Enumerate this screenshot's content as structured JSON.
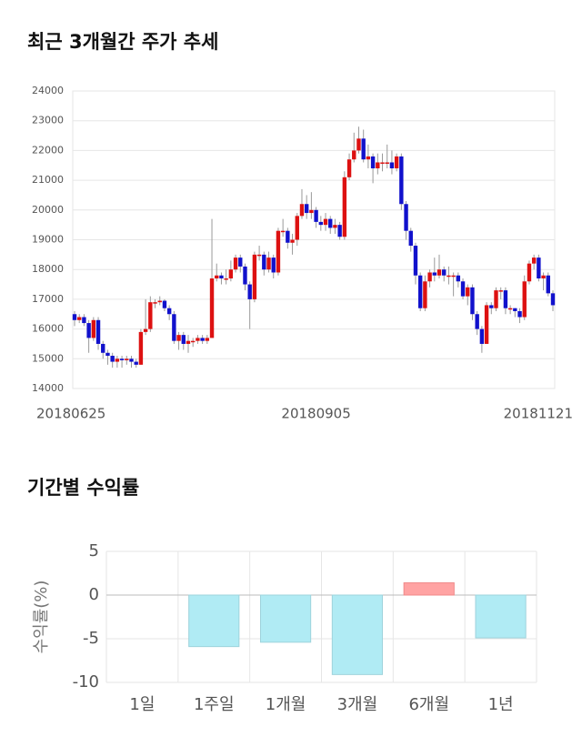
{
  "chart_data": [
    {
      "type": "candlestick",
      "title": "최근 3개월간 주가 추세",
      "up_color": "#dd1111",
      "down_color": "#1111cc",
      "ylim": [
        14000,
        24000
      ],
      "yticks": [
        14000,
        15000,
        16000,
        17000,
        18000,
        19000,
        20000,
        21000,
        22000,
        23000,
        24000
      ],
      "grid": true,
      "categories": [
        "20180625",
        null,
        null,
        null,
        null,
        null,
        null,
        null,
        null,
        null,
        null,
        null,
        null,
        null,
        null,
        null,
        null,
        null,
        null,
        null,
        null,
        null,
        null,
        null,
        null,
        null,
        null,
        null,
        null,
        null,
        null,
        null,
        null,
        null,
        null,
        null,
        null,
        null,
        null,
        null,
        null,
        null,
        null,
        null,
        null,
        null,
        null,
        null,
        null,
        null,
        null,
        "20180905",
        null,
        null,
        null,
        null,
        null,
        null,
        null,
        null,
        null,
        null,
        null,
        null,
        null,
        null,
        null,
        null,
        null,
        null,
        null,
        null,
        null,
        null,
        null,
        null,
        null,
        null,
        null,
        null,
        null,
        null,
        null,
        null,
        null,
        null,
        null,
        null,
        null,
        null,
        null,
        null,
        null,
        null,
        null,
        null,
        null,
        null,
        null,
        null,
        null,
        "20181121"
      ],
      "open": [
        16500,
        16300,
        16400,
        16200,
        15700,
        16300,
        15500,
        15200,
        15100,
        14900,
        15000,
        14950,
        15000,
        14900,
        14800,
        15900,
        16000,
        16900,
        16900,
        16950,
        16700,
        16500,
        15600,
        15800,
        15500,
        15600,
        15600,
        15700,
        15600,
        15700,
        17700,
        17800,
        17700,
        17700,
        18000,
        18400,
        18100,
        17500,
        17000,
        18500,
        18500,
        18000,
        18400,
        17900,
        19300,
        19300,
        18900,
        19000,
        19800,
        20200,
        19900,
        20000,
        19600,
        19500,
        19700,
        19400,
        19500,
        19100,
        21100,
        21700,
        22000,
        22400,
        21700,
        21800,
        21400,
        21600,
        21600,
        21600,
        21400,
        21800,
        20200,
        19300,
        18800,
        17800,
        16700,
        17600,
        17900,
        17800,
        18000,
        17800,
        17800,
        17800,
        17600,
        17100,
        17400,
        16500,
        16000,
        15500,
        16800,
        16700,
        17300,
        17300,
        16700,
        16700,
        16600,
        16400,
        17600,
        18200,
        18400,
        17700,
        17800,
        17200
      ],
      "high": [
        16600,
        16500,
        16500,
        16300,
        16400,
        16400,
        15600,
        15300,
        15200,
        15100,
        15100,
        15100,
        15100,
        15000,
        16000,
        17000,
        17100,
        17000,
        17100,
        17000,
        16800,
        16600,
        15900,
        15900,
        15800,
        15700,
        15800,
        15800,
        15800,
        19700,
        18200,
        17900,
        18000,
        18300,
        18500,
        18500,
        18200,
        17600,
        18600,
        18800,
        18600,
        18600,
        18500,
        19400,
        19700,
        19400,
        19200,
        19900,
        20700,
        20500,
        20600,
        20100,
        19800,
        19900,
        19800,
        19700,
        19600,
        21300,
        21900,
        22600,
        22800,
        22700,
        22200,
        21900,
        21900,
        21900,
        22200,
        22000,
        21900,
        21900,
        20300,
        19400,
        18900,
        17900,
        17800,
        18000,
        18400,
        18500,
        18100,
        18100,
        17900,
        17900,
        17700,
        17500,
        17500,
        16600,
        16100,
        16900,
        16900,
        17400,
        17400,
        17400,
        16800,
        16700,
        16700,
        17800,
        18300,
        18500,
        18500,
        17900,
        17900,
        17300
      ],
      "low": [
        16100,
        16200,
        16100,
        15200,
        15600,
        15300,
        15000,
        14800,
        14700,
        14700,
        14700,
        14800,
        14700,
        14700,
        14800,
        15800,
        15900,
        16700,
        16800,
        16600,
        16300,
        15500,
        15300,
        15300,
        15200,
        15400,
        15500,
        15500,
        15500,
        15700,
        17600,
        17500,
        17500,
        17600,
        17900,
        17900,
        17300,
        16000,
        16900,
        18300,
        17800,
        17900,
        17700,
        17800,
        19100,
        18700,
        18500,
        18800,
        19700,
        19700,
        19700,
        19400,
        19300,
        19300,
        19200,
        19200,
        19000,
        19000,
        21000,
        21600,
        21900,
        21600,
        21400,
        20900,
        21200,
        21300,
        21400,
        21200,
        21300,
        20000,
        19000,
        18600,
        17500,
        16600,
        16600,
        17400,
        17600,
        17700,
        17600,
        17500,
        17100,
        17400,
        17000,
        16800,
        16300,
        15800,
        15200,
        15500,
        16500,
        16600,
        17000,
        16500,
        16500,
        16400,
        16200,
        16300,
        17500,
        18000,
        17600,
        17300,
        17100,
        16600
      ],
      "close": [
        16300,
        16400,
        16200,
        15700,
        16300,
        15500,
        15200,
        15100,
        14900,
        15000,
        14950,
        15000,
        14900,
        14800,
        15900,
        16000,
        16900,
        16900,
        16950,
        16700,
        16500,
        15600,
        15800,
        15500,
        15600,
        15600,
        15700,
        15600,
        15700,
        17700,
        17800,
        17700,
        17700,
        18000,
        18400,
        18100,
        17500,
        17000,
        18500,
        18500,
        18000,
        18400,
        17900,
        19300,
        19300,
        18900,
        19000,
        19800,
        20200,
        19900,
        20000,
        19600,
        19500,
        19700,
        19400,
        19500,
        19100,
        21100,
        21700,
        22000,
        22400,
        21700,
        21800,
        21400,
        21600,
        21600,
        21600,
        21400,
        21800,
        20200,
        19300,
        18800,
        17800,
        16700,
        17600,
        17900,
        17800,
        18000,
        17800,
        17800,
        17800,
        17600,
        17100,
        17400,
        16500,
        16000,
        15500,
        16800,
        16700,
        17300,
        17300,
        16700,
        16700,
        16600,
        16400,
        17600,
        18200,
        18400,
        17700,
        17800,
        17200,
        16800
      ]
    },
    {
      "type": "bar",
      "title": "기간별 수익률",
      "y_label": "수익률(%)",
      "categories": [
        "1일",
        "1주일",
        "1개월",
        "3개월",
        "6개월",
        "1년"
      ],
      "values": [
        0,
        -5.9,
        -5.4,
        -9.1,
        1.4,
        -4.9
      ],
      "positive_color": "#ffa3a3",
      "negative_color": "#b0ebf4",
      "ylim": [
        -10,
        5
      ],
      "yticks": [
        -10,
        -5,
        0,
        5
      ],
      "grid": true
    }
  ]
}
